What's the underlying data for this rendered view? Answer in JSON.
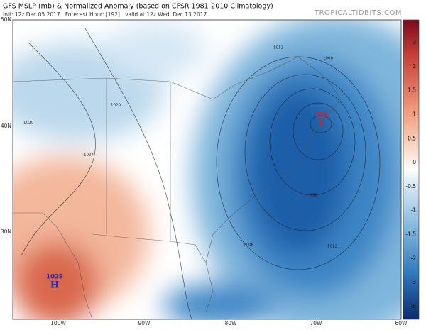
{
  "header": {
    "title": "GFS MSLP (mb) & Normalized Anomaly (based on CFSR 1981-2010 Climatology)",
    "subtitle": "Init: 12z Dec 05 2017   Forecast Hour: [192]   valid at 12z Wed, Dec 13 2017",
    "credit": "TROPICALTIDBITS.COM"
  },
  "map": {
    "lat_labels": [
      "50N",
      "40N",
      "30N"
    ],
    "lon_labels": [
      "100W",
      "90W",
      "80W",
      "70W",
      "60W"
    ],
    "pressure_centers": [
      {
        "value": "1029",
        "symbol": "H"
      },
      {
        "value": "982",
        "symbol": "L"
      }
    ],
    "isobar_labels": [
      "1020",
      "1020",
      "1024",
      "1012",
      "1008",
      "1012",
      "1000",
      "988"
    ]
  },
  "colorbar": {
    "labels": [
      "3",
      "2",
      "1.5",
      "1",
      "0.5",
      "0",
      "-0.5",
      "-1",
      "-1.5",
      "-2",
      "-3",
      "-5"
    ]
  }
}
